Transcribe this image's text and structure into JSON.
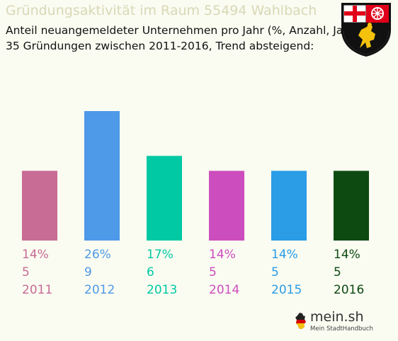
{
  "header": {
    "title": "Gründungsaktivität im Raum 55494 Wahlbach",
    "subtitle_line1": "Anteil neuangemeldeter Unternehmen pro Jahr (%, Anzahl, Jahr)",
    "subtitle_line2": "35 Gründungen zwischen 2011-2016, Trend absteigend:"
  },
  "crest": {
    "icon": "coat-of-arms-rheinland-pfalz-icon"
  },
  "logo": {
    "name": "mein.sh",
    "tagline": "Mein StadtHandbuch",
    "icon": "germany-map-icon"
  },
  "chart_data": {
    "type": "bar",
    "categories": [
      "2011",
      "2012",
      "2013",
      "2014",
      "2015",
      "2016"
    ],
    "values": [
      14,
      26,
      17,
      14,
      14,
      14
    ],
    "counts": [
      5,
      9,
      6,
      5,
      5,
      5
    ],
    "percent_labels": [
      "14%",
      "26%",
      "17%",
      "14%",
      "14%",
      "14%"
    ],
    "colors": [
      "#c86b95",
      "#4e99e8",
      "#00c9a4",
      "#cc4dbe",
      "#2b9ce6",
      "#0d4a12"
    ],
    "ylim": [
      0,
      26
    ],
    "grid": false,
    "legend": "none"
  }
}
